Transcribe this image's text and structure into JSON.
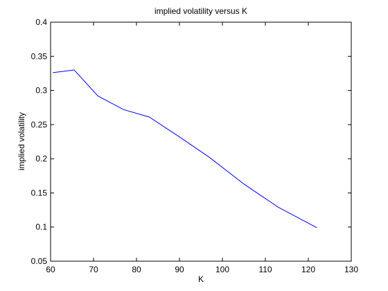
{
  "chart_data": {
    "type": "line",
    "title": "implied volatility versus K",
    "xlabel": "K",
    "ylabel": "implied volatility",
    "xlim": [
      60,
      130
    ],
    "ylim": [
      0.05,
      0.4
    ],
    "xticks": [
      60,
      70,
      80,
      90,
      100,
      110,
      120,
      130
    ],
    "yticks": [
      0.05,
      0.1,
      0.15,
      0.2,
      0.25,
      0.3,
      0.35,
      0.4
    ],
    "xtick_labels": [
      "60",
      "70",
      "80",
      "90",
      "100",
      "110",
      "120",
      "130"
    ],
    "ytick_labels": [
      "0.05",
      "0.1",
      "0.15",
      "0.2",
      "0.25",
      "0.3",
      "0.35",
      "0.4"
    ],
    "grid": false,
    "line_color": "#0000ff",
    "series": [
      {
        "x": [
          60.5,
          65.5,
          71,
          77,
          83,
          90,
          97,
          105,
          113,
          122
        ],
        "y": [
          0.326,
          0.33,
          0.292,
          0.272,
          0.261,
          0.232,
          0.202,
          0.163,
          0.129,
          0.099
        ]
      }
    ]
  }
}
